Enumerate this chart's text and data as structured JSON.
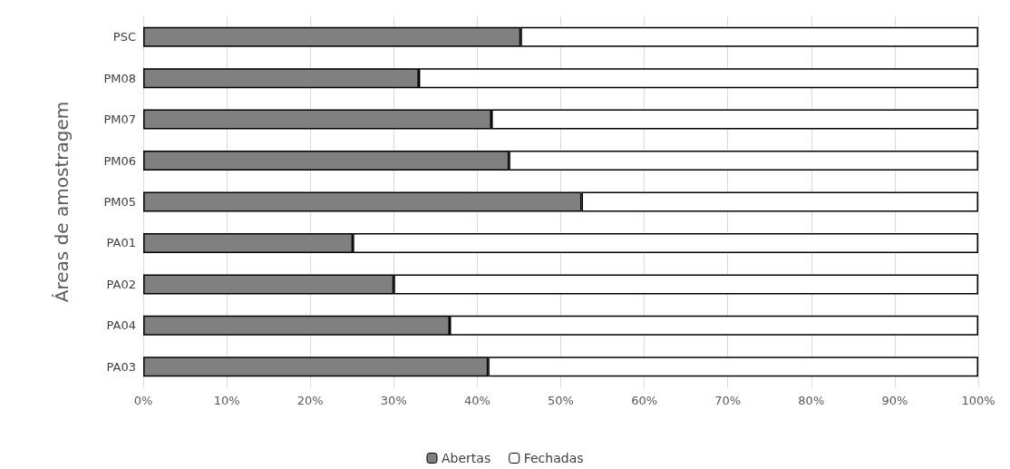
{
  "chart_data": {
    "type": "bar",
    "orientation": "horizontal",
    "stacked": true,
    "ylabel": "Áreas de amostragem",
    "categories": [
      "PSC",
      "PM08",
      "PM07",
      "PM06",
      "PM05",
      "PA01",
      "PA02",
      "PA04",
      "PA03"
    ],
    "series": [
      {
        "name": "Abertas",
        "color": "#808080",
        "values": [
          45.2,
          33.0,
          41.7,
          43.8,
          52.5,
          25.1,
          30.0,
          36.7,
          41.3
        ]
      },
      {
        "name": "Fechadas",
        "color": "#ffffff",
        "values": [
          54.8,
          67.0,
          58.3,
          56.2,
          47.5,
          74.9,
          70.0,
          63.3,
          58.7
        ]
      }
    ],
    "xlim": [
      0,
      100
    ],
    "xticks": [
      {
        "value": 0,
        "label": "0%"
      },
      {
        "value": 10,
        "label": "10%"
      },
      {
        "value": 20,
        "label": "20%"
      },
      {
        "value": 30,
        "label": "30%"
      },
      {
        "value": 40,
        "label": "40%"
      },
      {
        "value": 50,
        "label": "50%"
      },
      {
        "value": 60,
        "label": "60%"
      },
      {
        "value": 70,
        "label": "70%"
      },
      {
        "value": 80,
        "label": "80%"
      },
      {
        "value": 90,
        "label": "90%"
      },
      {
        "value": 100,
        "label": "100%"
      }
    ],
    "grid": "x",
    "legend": "bottom"
  }
}
